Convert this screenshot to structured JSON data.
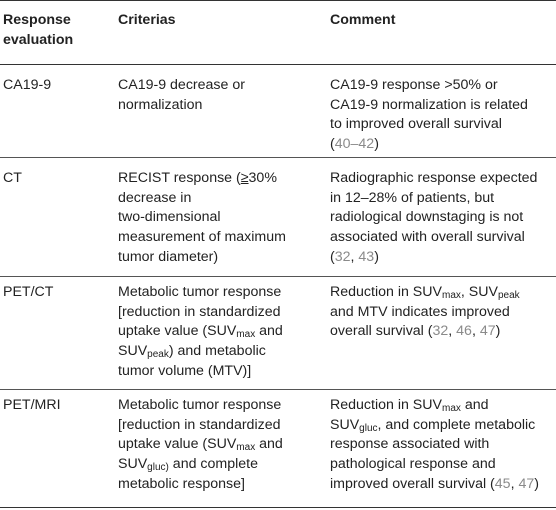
{
  "header": {
    "col1_line1": "Response",
    "col1_line2": "evaluation",
    "col2": "Criterias",
    "col3": "Comment"
  },
  "rows": [
    {
      "response": "CA19-9",
      "criteria": [
        "CA19-9 decrease or",
        "normalization"
      ],
      "comment": {
        "l1": "CA19-9 response >50% or",
        "l2": "CA19-9 normalization is related",
        "l3": "to improved overall survival",
        "l4_open": "(",
        "ref": "40–42",
        "l4_close": ")"
      }
    },
    {
      "response": "CT",
      "criteria": {
        "l1_a": "RECIST response (",
        "l1_sym": "≥",
        "l1_b": "30%",
        "l2": "decrease in",
        "l3": "two-dimensional",
        "l4": "measurement of maximum",
        "l5": "tumor diameter)"
      },
      "comment": {
        "l1": "Radiographic response expected",
        "l2": "in 12–28% of patients, but",
        "l3": "radiological downstaging is not",
        "l4": "associated with overall survival",
        "l5_open": "(",
        "ref1": "32",
        "sep": ", ",
        "ref2": "43",
        "l5_close": ")"
      }
    },
    {
      "response": "PET/CT",
      "criteria": {
        "l1": "Metabolic tumor response",
        "l2": "[reduction in standardized",
        "l3_a": "uptake value (SUV",
        "l3_sub": "max",
        "l3_b": " and",
        "l4_a": "SUV",
        "l4_sub": "peak",
        "l4_b": ") and metabolic",
        "l5": "tumor volume (MTV)]"
      },
      "comment": {
        "l1_a": "Reduction in SUV",
        "l1_sub1": "max",
        "l1_b": ", SUV",
        "l1_sub2": "peak",
        "l2": "and MTV indicates improved",
        "l3_a": "overall survival (",
        "ref1": "32",
        "sep1": ", ",
        "ref2": "46",
        "sep2": ", ",
        "ref3": "47",
        "l3_close": ")"
      }
    },
    {
      "response": "PET/MRI",
      "criteria": {
        "l1": "Metabolic tumor response",
        "l2": "[reduction in standardized",
        "l3_a": "uptake value (SUV",
        "l3_sub": "max",
        "l3_b": " and",
        "l4_a": "SUV",
        "l4_sub": "gluc)",
        "l4_b": " and complete",
        "l5": "metabolic response]"
      },
      "comment": {
        "l1_a": "Reduction in SUV",
        "l1_sub": "max",
        "l1_b": " and",
        "l2_a": "SUV",
        "l2_sub": "gluc",
        "l2_b": ", and complete metabolic",
        "l3": "response associated with",
        "l4": "pathological response and",
        "l5_a": "improved overall survival (",
        "ref1": "45",
        "sep": ", ",
        "ref2": "47",
        "l5_close": ")"
      }
    }
  ]
}
